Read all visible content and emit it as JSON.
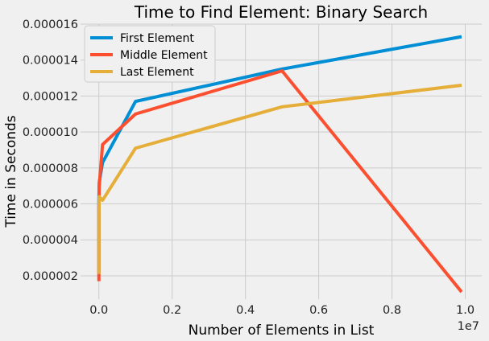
{
  "chart_data": {
    "type": "line",
    "title": "Time to Find Element: Binary Search",
    "xlabel": "Number of Elements in List",
    "ylabel": "Time in Seconds",
    "x_offset_label": "1e7",
    "xlim": [
      -500000,
      10450000
    ],
    "ylim": [
      7e-07,
      1.6e-05
    ],
    "grid": true,
    "legend_position": "top-left",
    "x_ticks": [
      {
        "value": 0,
        "label": "0.0"
      },
      {
        "value": 2000000,
        "label": "0.2"
      },
      {
        "value": 4000000,
        "label": "0.4"
      },
      {
        "value": 6000000,
        "label": "0.6"
      },
      {
        "value": 8000000,
        "label": "0.8"
      },
      {
        "value": 10000000,
        "label": "1.0"
      }
    ],
    "y_ticks": [
      {
        "value": 2e-06,
        "label": "0.000002"
      },
      {
        "value": 4e-06,
        "label": "0.000004"
      },
      {
        "value": 6e-06,
        "label": "0.000006"
      },
      {
        "value": 8e-06,
        "label": "0.000008"
      },
      {
        "value": 1e-05,
        "label": "0.000010"
      },
      {
        "value": 1.2e-05,
        "label": "0.000012"
      },
      {
        "value": 1.4e-05,
        "label": "0.000014"
      },
      {
        "value": 1.6e-05,
        "label": "0.000016"
      }
    ],
    "x": [
      10,
      100,
      1000,
      10000,
      100000,
      1000000,
      5000000,
      9900000
    ],
    "series": [
      {
        "name": "First Element",
        "color": "#008fd5",
        "values": [
          2.2e-06,
          4.5e-06,
          6.3e-06,
          7.2e-06,
          8.3e-06,
          1.17e-05,
          1.35e-05,
          1.53e-05
        ]
      },
      {
        "name": "Middle Element",
        "color": "#fc4f30",
        "values": [
          1.7e-06,
          3.2e-06,
          5.8e-06,
          7e-06,
          9.3e-06,
          1.1e-05,
          1.34e-05,
          1.1e-06
        ]
      },
      {
        "name": "Last Element",
        "color": "#e5ae38",
        "values": [
          2.1e-06,
          3.5e-06,
          5.4e-06,
          6.4e-06,
          6.2e-06,
          9.1e-06,
          1.14e-05,
          1.26e-05
        ]
      }
    ]
  }
}
